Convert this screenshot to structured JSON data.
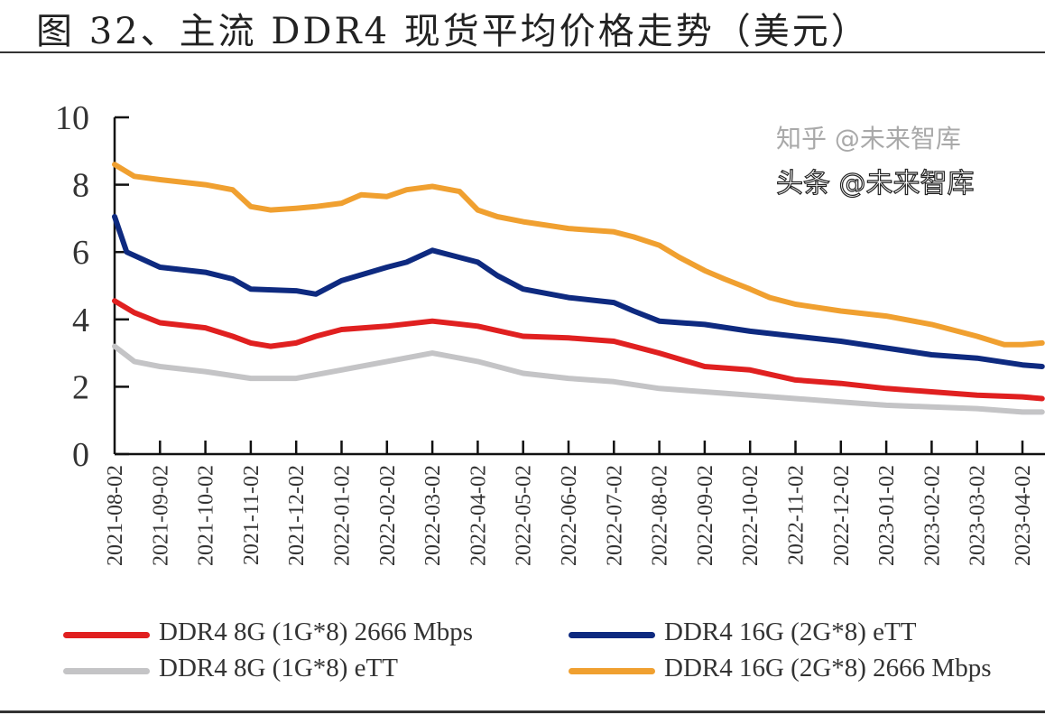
{
  "title": "图 32、主流 DDR4 现货平均价格走势（美元）",
  "watermarks": [
    "知乎 @未来智库",
    "头条 @未来智库"
  ],
  "chart_data": {
    "type": "line",
    "title": "",
    "xlabel": "",
    "ylabel": "",
    "ylim": [
      0,
      10
    ],
    "yticks": [
      "0",
      "2",
      "4",
      "6",
      "8",
      "10"
    ],
    "xticks": [
      "2021-08-02",
      "2021-09-02",
      "2021-10-02",
      "2021-11-02",
      "2021-12-02",
      "2022-01-02",
      "2022-02-02",
      "2022-03-02",
      "2022-04-02",
      "2022-05-02",
      "2022-06-02",
      "2022-07-02",
      "2022-08-02",
      "2022-09-02",
      "2022-10-02",
      "2022-11-02",
      "2022-12-02",
      "2023-01-02",
      "2023-02-02",
      "2023-03-02",
      "2023-04-02"
    ],
    "grid": false,
    "legend_position": "bottom",
    "series": [
      {
        "name": "DDR4 8G (1G*8) 2666 Mbps",
        "color": "#e02020",
        "points": [
          [
            "2021-08-02",
            4.55
          ],
          [
            "2021-08-15",
            4.2
          ],
          [
            "2021-09-02",
            3.9
          ],
          [
            "2021-10-02",
            3.75
          ],
          [
            "2021-10-20",
            3.5
          ],
          [
            "2021-11-02",
            3.3
          ],
          [
            "2021-11-15",
            3.2
          ],
          [
            "2021-12-02",
            3.3
          ],
          [
            "2021-12-15",
            3.5
          ],
          [
            "2022-01-02",
            3.7
          ],
          [
            "2022-02-02",
            3.8
          ],
          [
            "2022-03-02",
            3.95
          ],
          [
            "2022-04-02",
            3.8
          ],
          [
            "2022-05-02",
            3.5
          ],
          [
            "2022-06-02",
            3.45
          ],
          [
            "2022-07-02",
            3.35
          ],
          [
            "2022-08-02",
            3.0
          ],
          [
            "2022-09-02",
            2.6
          ],
          [
            "2022-10-02",
            2.5
          ],
          [
            "2022-11-02",
            2.2
          ],
          [
            "2022-12-02",
            2.1
          ],
          [
            "2023-01-02",
            1.95
          ],
          [
            "2023-02-02",
            1.85
          ],
          [
            "2023-03-02",
            1.75
          ],
          [
            "2023-04-02",
            1.7
          ],
          [
            "2023-04-15",
            1.65
          ]
        ]
      },
      {
        "name": "DDR4 16G (2G*8) eTT",
        "color": "#0e2a80",
        "points": [
          [
            "2021-08-02",
            7.05
          ],
          [
            "2021-08-10",
            6.0
          ],
          [
            "2021-09-02",
            5.55
          ],
          [
            "2021-10-02",
            5.4
          ],
          [
            "2021-10-20",
            5.2
          ],
          [
            "2021-11-02",
            4.9
          ],
          [
            "2021-12-02",
            4.85
          ],
          [
            "2021-12-15",
            4.75
          ],
          [
            "2022-01-02",
            5.15
          ],
          [
            "2022-02-02",
            5.55
          ],
          [
            "2022-02-15",
            5.7
          ],
          [
            "2022-03-02",
            6.05
          ],
          [
            "2022-04-02",
            5.7
          ],
          [
            "2022-04-15",
            5.3
          ],
          [
            "2022-05-02",
            4.9
          ],
          [
            "2022-06-02",
            4.65
          ],
          [
            "2022-07-02",
            4.5
          ],
          [
            "2022-07-15",
            4.25
          ],
          [
            "2022-08-02",
            3.95
          ],
          [
            "2022-09-02",
            3.85
          ],
          [
            "2022-10-02",
            3.65
          ],
          [
            "2022-11-02",
            3.5
          ],
          [
            "2022-12-02",
            3.35
          ],
          [
            "2023-01-02",
            3.15
          ],
          [
            "2023-02-02",
            2.95
          ],
          [
            "2023-03-02",
            2.85
          ],
          [
            "2023-04-02",
            2.65
          ],
          [
            "2023-04-15",
            2.6
          ]
        ]
      },
      {
        "name": "DDR4 8G (1G*8) eTT",
        "color": "#c4c4c6",
        "points": [
          [
            "2021-08-02",
            3.2
          ],
          [
            "2021-08-15",
            2.75
          ],
          [
            "2021-09-02",
            2.6
          ],
          [
            "2021-10-02",
            2.45
          ],
          [
            "2021-11-02",
            2.25
          ],
          [
            "2021-12-02",
            2.25
          ],
          [
            "2022-01-02",
            2.5
          ],
          [
            "2022-02-02",
            2.75
          ],
          [
            "2022-03-02",
            3.0
          ],
          [
            "2022-04-02",
            2.75
          ],
          [
            "2022-05-02",
            2.4
          ],
          [
            "2022-06-02",
            2.25
          ],
          [
            "2022-07-02",
            2.15
          ],
          [
            "2022-08-02",
            1.95
          ],
          [
            "2022-09-02",
            1.85
          ],
          [
            "2022-10-02",
            1.75
          ],
          [
            "2022-11-02",
            1.65
          ],
          [
            "2022-12-02",
            1.55
          ],
          [
            "2023-01-02",
            1.45
          ],
          [
            "2023-02-02",
            1.4
          ],
          [
            "2023-03-02",
            1.35
          ],
          [
            "2023-04-02",
            1.25
          ],
          [
            "2023-04-15",
            1.25
          ]
        ]
      },
      {
        "name": "DDR4 16G (2G*8) 2666 Mbps",
        "color": "#f0a030",
        "points": [
          [
            "2021-08-02",
            8.6
          ],
          [
            "2021-08-15",
            8.25
          ],
          [
            "2021-09-02",
            8.15
          ],
          [
            "2021-10-02",
            8.0
          ],
          [
            "2021-10-20",
            7.85
          ],
          [
            "2021-11-02",
            7.35
          ],
          [
            "2021-11-15",
            7.25
          ],
          [
            "2021-12-02",
            7.3
          ],
          [
            "2021-12-15",
            7.35
          ],
          [
            "2022-01-02",
            7.45
          ],
          [
            "2022-01-15",
            7.7
          ],
          [
            "2022-02-02",
            7.65
          ],
          [
            "2022-02-15",
            7.85
          ],
          [
            "2022-03-02",
            7.95
          ],
          [
            "2022-03-20",
            7.8
          ],
          [
            "2022-04-02",
            7.25
          ],
          [
            "2022-04-15",
            7.05
          ],
          [
            "2022-05-02",
            6.9
          ],
          [
            "2022-06-02",
            6.7
          ],
          [
            "2022-07-02",
            6.6
          ],
          [
            "2022-07-15",
            6.45
          ],
          [
            "2022-08-02",
            6.2
          ],
          [
            "2022-08-15",
            5.85
          ],
          [
            "2022-09-02",
            5.45
          ],
          [
            "2022-09-15",
            5.2
          ],
          [
            "2022-10-02",
            4.9
          ],
          [
            "2022-10-15",
            4.65
          ],
          [
            "2022-11-02",
            4.45
          ],
          [
            "2022-12-02",
            4.25
          ],
          [
            "2023-01-02",
            4.1
          ],
          [
            "2023-02-02",
            3.85
          ],
          [
            "2023-03-02",
            3.5
          ],
          [
            "2023-03-20",
            3.25
          ],
          [
            "2023-04-02",
            3.25
          ],
          [
            "2023-04-15",
            3.3
          ]
        ]
      }
    ]
  }
}
